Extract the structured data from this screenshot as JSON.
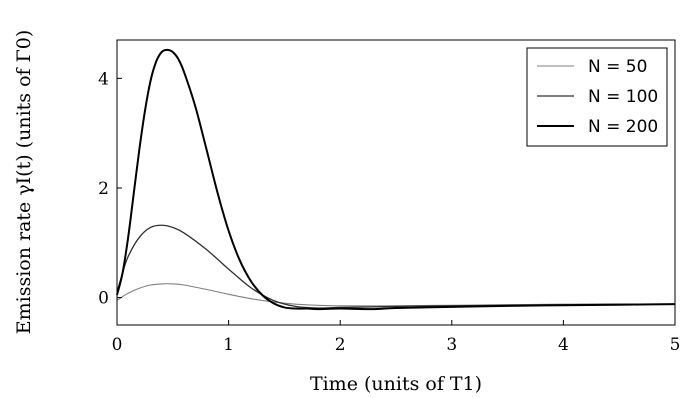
{
  "chart_data": {
    "type": "line",
    "xlabel": "Time (units of T1)",
    "ylabel": "Emission rate γI(t) (units of Γ0)",
    "xlim": [
      0,
      5
    ],
    "ylim": [
      -0.5,
      4.7
    ],
    "xticks": [
      0,
      1,
      2,
      3,
      4,
      5
    ],
    "yticks": [
      0,
      2,
      4
    ],
    "grid": false,
    "legend_position": "top-right",
    "series": [
      {
        "name": "N = 50",
        "color": "#808080",
        "x": [
          0,
          0.1,
          0.2,
          0.3,
          0.4,
          0.5,
          0.6,
          0.8,
          1.0,
          1.2,
          1.4,
          1.6,
          1.8,
          2.0,
          2.5,
          3.0,
          3.5,
          4.0,
          4.5,
          5.0
        ],
        "y": [
          -0.05,
          0.08,
          0.17,
          0.23,
          0.25,
          0.25,
          0.23,
          0.15,
          0.06,
          -0.02,
          -0.08,
          -0.12,
          -0.14,
          -0.15,
          -0.15,
          -0.14,
          -0.13,
          -0.12,
          -0.12,
          -0.12
        ]
      },
      {
        "name": "N = 100",
        "color": "#303030",
        "x": [
          0,
          0.05,
          0.1,
          0.2,
          0.3,
          0.4,
          0.5,
          0.6,
          0.8,
          1.0,
          1.2,
          1.4,
          1.6,
          1.8,
          2.0,
          2.3,
          2.5,
          3.0,
          3.5,
          4.0,
          4.5,
          5.0
        ],
        "y": [
          0.1,
          0.45,
          0.75,
          1.1,
          1.28,
          1.32,
          1.28,
          1.18,
          0.88,
          0.52,
          0.18,
          -0.05,
          -0.16,
          -0.19,
          -0.18,
          -0.17,
          -0.16,
          -0.15,
          -0.14,
          -0.13,
          -0.12,
          -0.12
        ]
      },
      {
        "name": "N = 200",
        "color": "#000000",
        "x": [
          0,
          0.05,
          0.1,
          0.15,
          0.2,
          0.25,
          0.3,
          0.35,
          0.4,
          0.45,
          0.5,
          0.55,
          0.6,
          0.7,
          0.8,
          0.9,
          1.0,
          1.1,
          1.2,
          1.3,
          1.4,
          1.5,
          1.6,
          1.7,
          1.8,
          2.0,
          2.3,
          2.5,
          3.0,
          3.5,
          4.0,
          4.5,
          5.0
        ],
        "y": [
          0.05,
          0.45,
          1.1,
          1.9,
          2.7,
          3.4,
          3.95,
          4.3,
          4.48,
          4.52,
          4.48,
          4.35,
          4.12,
          3.5,
          2.72,
          1.92,
          1.22,
          0.68,
          0.3,
          0.05,
          -0.1,
          -0.18,
          -0.2,
          -0.2,
          -0.21,
          -0.2,
          -0.21,
          -0.19,
          -0.17,
          -0.15,
          -0.14,
          -0.13,
          -0.12
        ]
      }
    ]
  },
  "legend": {
    "items": [
      {
        "label": "N = 50",
        "color": "#808080"
      },
      {
        "label": "N = 100",
        "color": "#303030"
      },
      {
        "label": "N = 200",
        "color": "#000000"
      }
    ]
  },
  "labels": {
    "xlabel": "Time (units of T1)",
    "ylabel": "Emission rate γI(t) (units of Γ0)"
  }
}
